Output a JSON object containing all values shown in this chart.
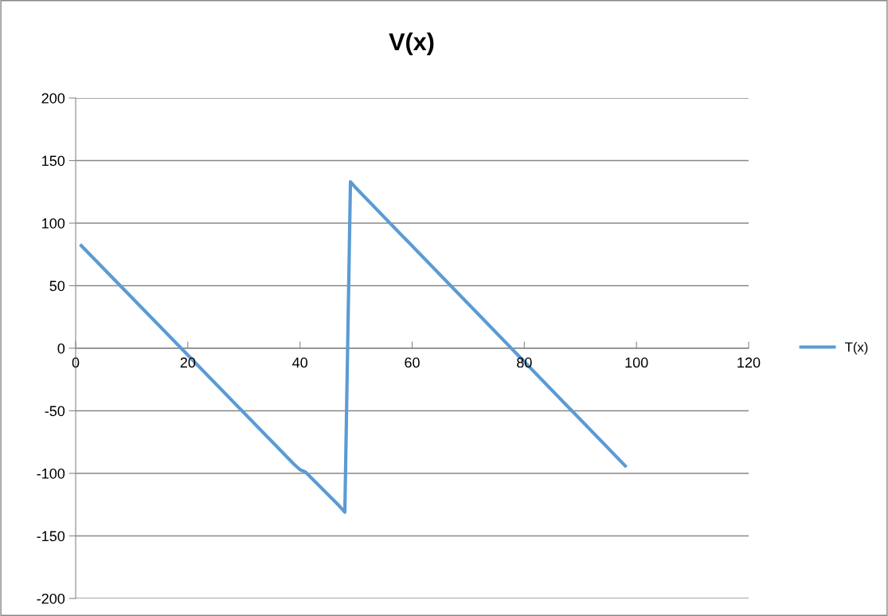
{
  "chart_data": {
    "type": "line",
    "title": "V(x)",
    "series": [
      {
        "name": "T(x)",
        "color": "#5b9bd5",
        "x": [
          1,
          39,
          40,
          41,
          47,
          48,
          49,
          50,
          98
        ],
        "values": [
          82,
          -93,
          -97,
          -99,
          -126,
          -131,
          133,
          128,
          -94
        ]
      }
    ],
    "xlim": [
      0,
      120
    ],
    "xticks": [
      0,
      20,
      40,
      60,
      80,
      100,
      120
    ],
    "ylim": [
      -200,
      200
    ],
    "yticks": [
      -200,
      -150,
      -100,
      -50,
      0,
      50,
      100,
      150,
      200
    ],
    "grid": "y",
    "legend": "right",
    "marker": "none",
    "line_style": "solid"
  }
}
